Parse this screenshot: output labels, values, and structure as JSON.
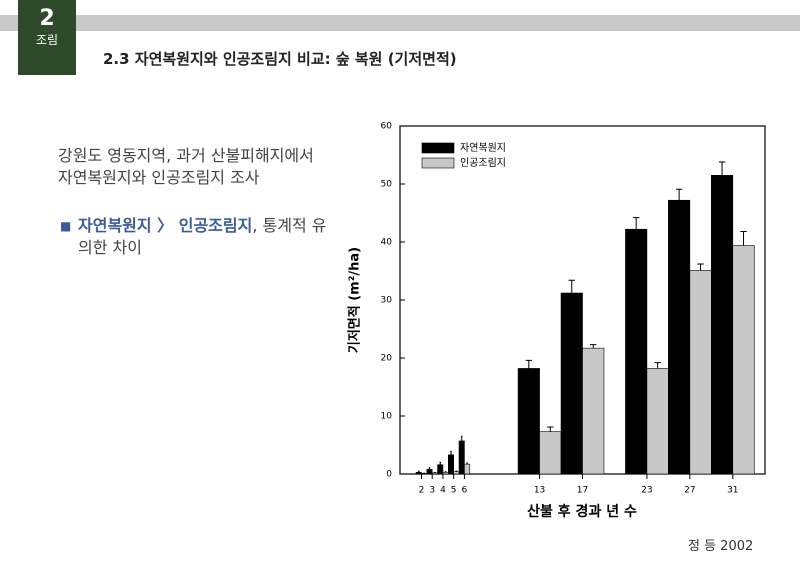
{
  "slide": {
    "badge_number": "2",
    "badge_label": "조림",
    "title": "2.3 자연복원지와 인공조림지 비교: 숲 복원 (기저면적)",
    "body": "강원도 영동지역, 과거 산불피해지에서 자연복원지와 인공조림지 조사",
    "bullet_highlight": "자연복원지 〉 인공조림지",
    "bullet_rest": ", 통계적 유의한 차이",
    "source": "정 등 2002"
  },
  "chart_data": {
    "type": "bar",
    "x_label": "산불 후 경과 년 수",
    "y_label": "기저면적 (m²/ha)",
    "x": [
      2,
      3,
      4,
      5,
      6,
      13,
      17,
      23,
      27,
      31
    ],
    "series": [
      {
        "name": "자연복원지",
        "color": "#000000",
        "values": [
          0.3,
          0.8,
          1.6,
          3.3,
          5.7,
          18.2,
          31.2,
          42.2,
          47.2,
          51.5
        ],
        "errors": [
          0.2,
          0.3,
          0.4,
          0.6,
          0.8,
          1.4,
          2.2,
          2.0,
          1.9,
          2.3
        ]
      },
      {
        "name": "인공조림지",
        "color": "#c8c8c8",
        "values": [
          0.1,
          0.2,
          0.3,
          0.4,
          1.7,
          7.3,
          21.7,
          18.2,
          35.1,
          39.4
        ],
        "errors": [
          0.05,
          0.05,
          0.1,
          0.1,
          0.2,
          0.8,
          0.6,
          1.0,
          1.1,
          2.4
        ]
      }
    ],
    "xlim": [
      0,
      34
    ],
    "xticks": [
      2,
      3,
      4,
      5,
      6,
      13,
      17,
      23,
      27,
      31
    ],
    "ylim": [
      0,
      60
    ],
    "yticks": [
      0,
      10,
      20,
      30,
      40,
      50,
      60
    ],
    "legend": "upper left"
  }
}
